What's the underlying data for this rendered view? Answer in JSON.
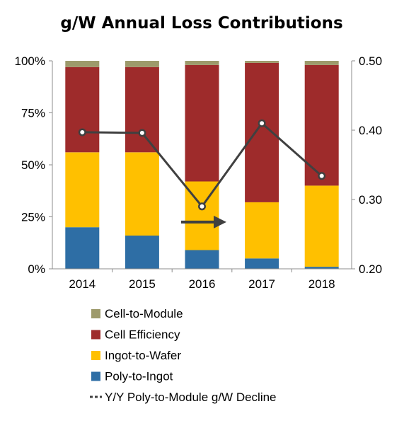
{
  "chart_data": {
    "type": "bar",
    "title": "g/W Annual Loss Contributions",
    "categories": [
      "2014",
      "2015",
      "2016",
      "2017",
      "2018"
    ],
    "stacking": "percent",
    "ylim": [
      0,
      100
    ],
    "y_ticks": [
      "0%",
      "25%",
      "50%",
      "75%",
      "100%"
    ],
    "y2lim": [
      0.2,
      0.5
    ],
    "y2_ticks": [
      "0.20",
      "0.30",
      "0.40",
      "0.50"
    ],
    "grid": false,
    "legend_position": "bottom",
    "series": [
      {
        "name": "Poly-to-Ingot",
        "color": "#2e6ea5",
        "values": [
          20,
          16,
          9,
          5,
          1
        ]
      },
      {
        "name": "Ingot-to-Wafer",
        "color": "#ffc000",
        "values": [
          36,
          40,
          33,
          27,
          39
        ]
      },
      {
        "name": "Cell Efficiency",
        "color": "#9e2b2b",
        "values": [
          41,
          41,
          56,
          67,
          58
        ]
      },
      {
        "name": "Cell-to-Module",
        "color": "#9d9a6b",
        "values": [
          3,
          3,
          2,
          1,
          2
        ]
      }
    ],
    "line_series": {
      "name": "Y/Y Poly-to-Module g/W Decline",
      "axis": "secondary",
      "color": "#404040",
      "values": [
        0.397,
        0.396,
        0.29,
        0.41,
        0.334
      ]
    },
    "annotation": {
      "type": "arrow",
      "color": "#404040",
      "label": ""
    }
  },
  "legend": [
    {
      "label": "Cell-to-Module",
      "color": "#9d9a6b",
      "kind": "box"
    },
    {
      "label": "Cell Efficiency",
      "color": "#9e2b2b",
      "kind": "box"
    },
    {
      "label": "Ingot-to-Wafer",
      "color": "#ffc000",
      "kind": "box"
    },
    {
      "label": "Poly-to-Ingot",
      "color": "#2e6ea5",
      "kind": "box"
    },
    {
      "label": "Y/Y Poly-to-Module g/W Decline",
      "color": "#404040",
      "kind": "line"
    }
  ]
}
